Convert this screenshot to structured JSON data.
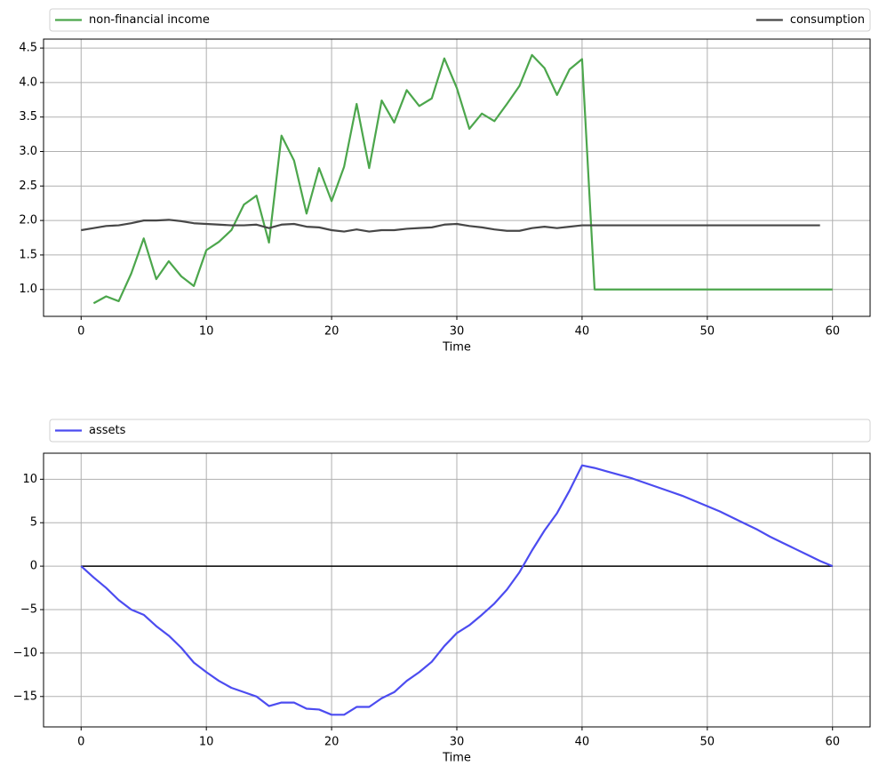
{
  "chart_data": [
    {
      "type": "line",
      "xlabel": "Time",
      "x": [
        0,
        1,
        2,
        3,
        4,
        5,
        6,
        7,
        8,
        9,
        10,
        11,
        12,
        13,
        14,
        15,
        16,
        17,
        18,
        19,
        20,
        21,
        22,
        23,
        24,
        25,
        26,
        27,
        28,
        29,
        30,
        31,
        32,
        33,
        34,
        35,
        36,
        37,
        38,
        39,
        40,
        41,
        42,
        43,
        44,
        45,
        46,
        47,
        48,
        49,
        50,
        51,
        52,
        53,
        54,
        55,
        56,
        57,
        58,
        59,
        60
      ],
      "series": [
        {
          "name": "non-financial income",
          "color": "#4ca64c",
          "values": [
            null,
            0.8,
            0.9,
            0.83,
            1.23,
            1.74,
            1.15,
            1.41,
            1.19,
            1.05,
            1.57,
            1.69,
            1.86,
            2.23,
            2.36,
            1.68,
            3.23,
            2.87,
            2.1,
            2.76,
            2.28,
            2.78,
            3.69,
            2.76,
            3.74,
            3.42,
            3.89,
            3.66,
            3.77,
            4.35,
            3.92,
            3.33,
            3.55,
            3.44,
            3.69,
            3.95,
            4.4,
            4.21,
            3.82,
            4.19,
            4.34,
            1.0,
            1.0,
            1.0,
            1.0,
            1.0,
            1.0,
            1.0,
            1.0,
            1.0,
            1.0,
            1.0,
            1.0,
            1.0,
            1.0,
            1.0,
            1.0,
            1.0,
            1.0,
            1.0,
            1.0
          ]
        },
        {
          "name": "consumption",
          "color": "#474747",
          "values": [
            1.86,
            1.89,
            1.92,
            1.93,
            1.96,
            2.0,
            2.0,
            2.01,
            1.99,
            1.96,
            1.95,
            1.94,
            1.93,
            1.93,
            1.94,
            1.89,
            1.94,
            1.95,
            1.91,
            1.9,
            1.86,
            1.84,
            1.87,
            1.84,
            1.86,
            1.86,
            1.88,
            1.89,
            1.9,
            1.94,
            1.95,
            1.92,
            1.9,
            1.87,
            1.85,
            1.85,
            1.89,
            1.91,
            1.89,
            1.91,
            1.93,
            1.93,
            1.93,
            1.93,
            1.93,
            1.93,
            1.93,
            1.93,
            1.93,
            1.93,
            1.93,
            1.93,
            1.93,
            1.93,
            1.93,
            1.93,
            1.93,
            1.93,
            1.93,
            1.93,
            null
          ]
        }
      ],
      "xlim": [
        -3,
        63
      ],
      "xticks": [
        0,
        10,
        20,
        30,
        40,
        50,
        60
      ],
      "ylim": [
        0.61,
        4.63
      ],
      "yticks": [
        {
          "value": 1,
          "label": "1.0"
        },
        1.5,
        {
          "value": 2,
          "label": "2.0"
        },
        2.5,
        {
          "value": 3,
          "label": "3.0"
        },
        3.5,
        {
          "value": 4,
          "label": "4.0"
        },
        4.5
      ],
      "grid": true,
      "legend": "top-expand"
    },
    {
      "type": "line",
      "xlabel": "Time",
      "x": [
        0,
        1,
        2,
        3,
        4,
        5,
        6,
        7,
        8,
        9,
        10,
        11,
        12,
        13,
        14,
        15,
        16,
        17,
        18,
        19,
        20,
        21,
        22,
        23,
        24,
        25,
        26,
        27,
        28,
        29,
        30,
        31,
        32,
        33,
        34,
        35,
        36,
        37,
        38,
        39,
        40,
        41,
        42,
        43,
        44,
        45,
        46,
        47,
        48,
        49,
        50,
        51,
        52,
        53,
        54,
        55,
        56,
        57,
        58,
        59,
        60
      ],
      "series": [
        {
          "name": "assets",
          "color": "#4c4cf0",
          "values": [
            0,
            -1.3,
            -2.5,
            -3.9,
            -5.0,
            -5.6,
            -6.9,
            -8.0,
            -9.4,
            -11.1,
            -12.2,
            -13.2,
            -14.0,
            -14.5,
            -15.0,
            -16.1,
            -15.7,
            -15.7,
            -16.4,
            -16.5,
            -17.1,
            -17.1,
            -16.2,
            -16.2,
            -15.2,
            -14.5,
            -13.2,
            -12.2,
            -11.0,
            -9.2,
            -7.7,
            -6.8,
            -5.6,
            -4.3,
            -2.7,
            -0.7,
            1.8,
            4.1,
            6.1,
            8.7,
            11.6,
            11.3,
            10.9,
            10.5,
            10.1,
            9.6,
            9.1,
            8.6,
            8.1,
            7.5,
            6.9,
            6.3,
            5.6,
            4.9,
            4.2,
            3.4,
            2.7,
            2.0,
            1.3,
            0.6,
            0
          ]
        }
      ],
      "hlines": [
        {
          "y": 0,
          "x": [
            0,
            60
          ],
          "color": "#000000"
        }
      ],
      "xlim": [
        -3,
        63
      ],
      "xticks": [
        0,
        10,
        20,
        30,
        40,
        50,
        60
      ],
      "ylim": [
        -18.5,
        13
      ],
      "yticks": [
        {
          "value": -15,
          "label": "−15"
        },
        {
          "value": -10,
          "label": "−10"
        },
        {
          "value": -5,
          "label": "−5"
        },
        0,
        5,
        10
      ],
      "grid": true,
      "legend": "top-expand"
    }
  ]
}
